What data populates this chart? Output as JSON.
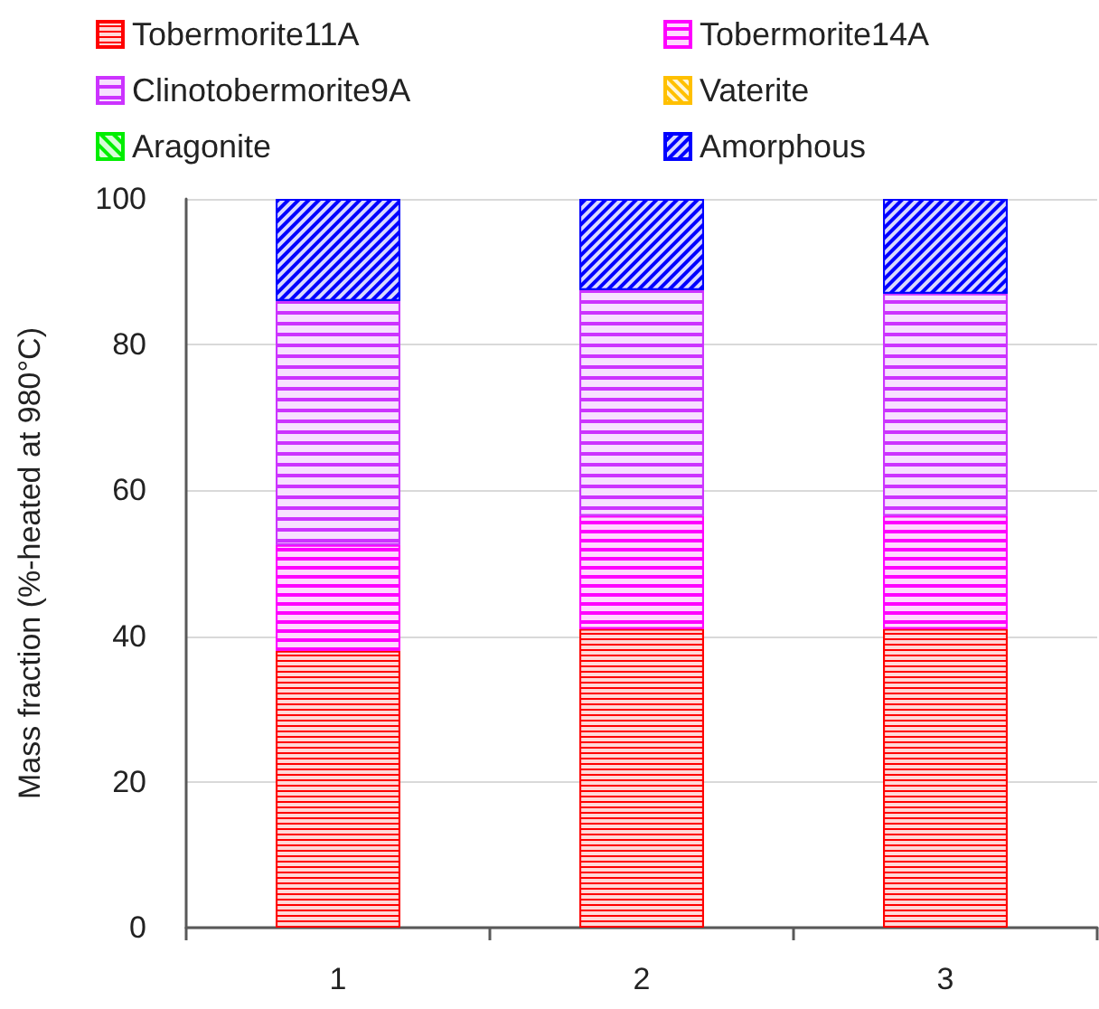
{
  "chart_data": {
    "type": "bar",
    "categories": [
      "1",
      "2",
      "3"
    ],
    "ylabel": "Mass fraction (%-heated at 980°C)",
    "ylim": [
      0,
      100
    ],
    "yticks": [
      0,
      20,
      40,
      60,
      80,
      100
    ],
    "stacked": true,
    "grid": "y",
    "legend": "top",
    "series": [
      {
        "name": "Tobermorite11A",
        "color": "#ff0000",
        "values": [
          38,
          41,
          41
        ]
      },
      {
        "name": "Tobermorite14A",
        "color": "#ff00ff",
        "values": [
          14.5,
          15.5,
          15.5
        ]
      },
      {
        "name": "Clinotobermorite9A",
        "color": "#cc33ff",
        "values": [
          33.5,
          31,
          30.5
        ]
      },
      {
        "name": "Vaterite",
        "color": "#ffc000",
        "values": [
          null,
          null,
          null
        ]
      },
      {
        "name": "Aragonite",
        "color": "#00ee00",
        "values": [
          null,
          null,
          null
        ]
      },
      {
        "name": "Amorphous",
        "color": "#0000ff",
        "values": [
          14,
          12.5,
          13
        ]
      }
    ]
  }
}
